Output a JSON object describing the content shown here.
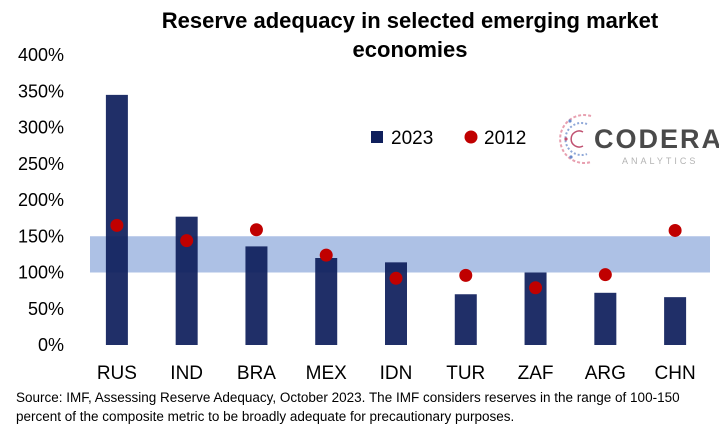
{
  "chart_data": {
    "type": "bar",
    "title_lines": [
      "Reserve adequacy in selected emerging market",
      "economies"
    ],
    "categories": [
      "RUS",
      "IND",
      "BRA",
      "MEX",
      "IDN",
      "TUR",
      "ZAF",
      "ARG",
      "CHN"
    ],
    "y_ticks": [
      "0%",
      "50%",
      "100%",
      "150%",
      "200%",
      "250%",
      "300%",
      "350%",
      "400%"
    ],
    "ylim": [
      0,
      400
    ],
    "series": [
      {
        "name": "2023",
        "style": "bar",
        "color": "#0f1f5c",
        "values": [
          345,
          177,
          136,
          120,
          114,
          70,
          100,
          72,
          66
        ]
      },
      {
        "name": "2012",
        "style": "dot",
        "color": "#c00000",
        "values": [
          165,
          144,
          159,
          124,
          92,
          96,
          79,
          97,
          158
        ]
      }
    ],
    "adequacy_band": {
      "from": 100,
      "to": 150,
      "color": "#9fb6e1"
    },
    "grid": false,
    "legend_position": "top-center"
  },
  "logo": {
    "word": "CODERA",
    "sub": "ANALYTICS"
  },
  "source_note": "Source: IMF, Assessing Reserve Adequacy, October 2023. The IMF considers reserves in the range of 100-150 percent of the composite metric to be broadly adequate for precautionary purposes."
}
